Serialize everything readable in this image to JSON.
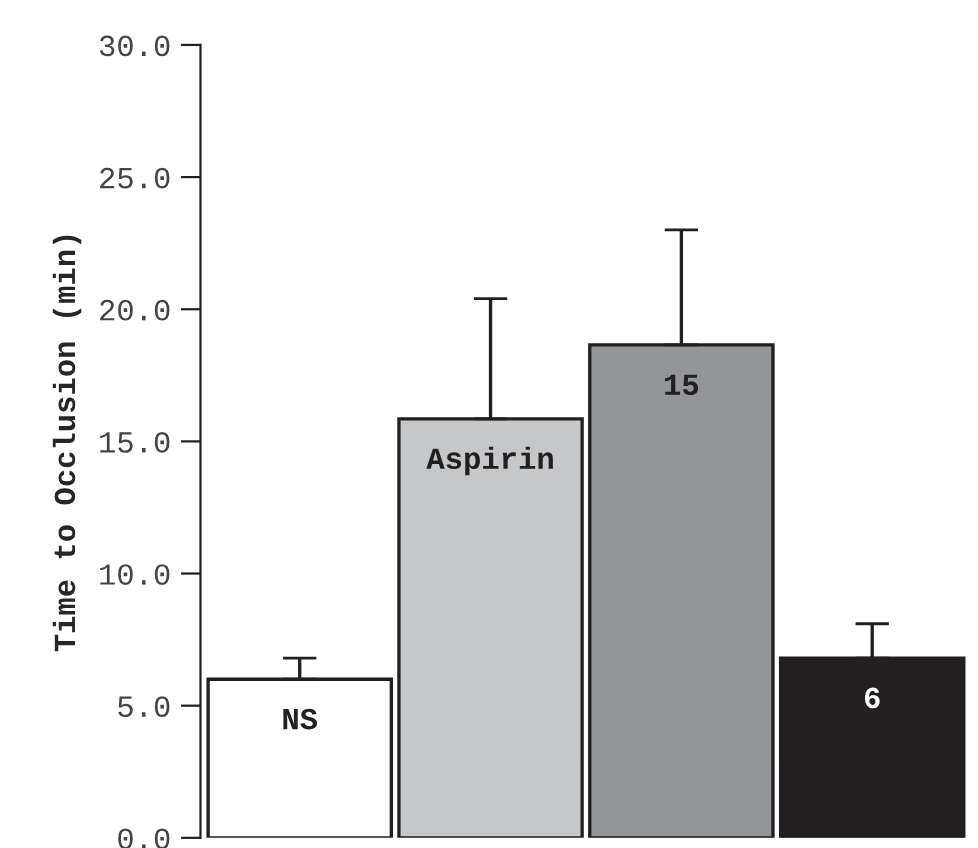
{
  "chart_data": {
    "type": "bar",
    "ylabel": "Time to Occlusion (min)",
    "categories": [
      "NS",
      "Aspirin",
      "15",
      "6"
    ],
    "values": [
      6.0,
      15.85,
      18.65,
      6.8
    ],
    "errors": [
      [
        6.0,
        6.8
      ],
      [
        15.85,
        20.4
      ],
      [
        18.65,
        23.0
      ],
      [
        6.8,
        8.1
      ]
    ],
    "colors": [
      "#ffffff",
      "#c6c7c9",
      "#939598",
      "#231f20"
    ],
    "ylim": [
      0,
      30
    ],
    "yticks": [
      {
        "value": 0,
        "label": "0.0"
      },
      {
        "value": 5,
        "label": "5.0"
      },
      {
        "value": 10,
        "label": "10.0"
      },
      {
        "value": 15,
        "label": "15.0"
      },
      {
        "value": 20,
        "label": "20.0"
      },
      {
        "value": 25,
        "label": "25.0"
      },
      {
        "value": 30,
        "label": "30.0"
      }
    ],
    "grid": false,
    "legend": false
  }
}
